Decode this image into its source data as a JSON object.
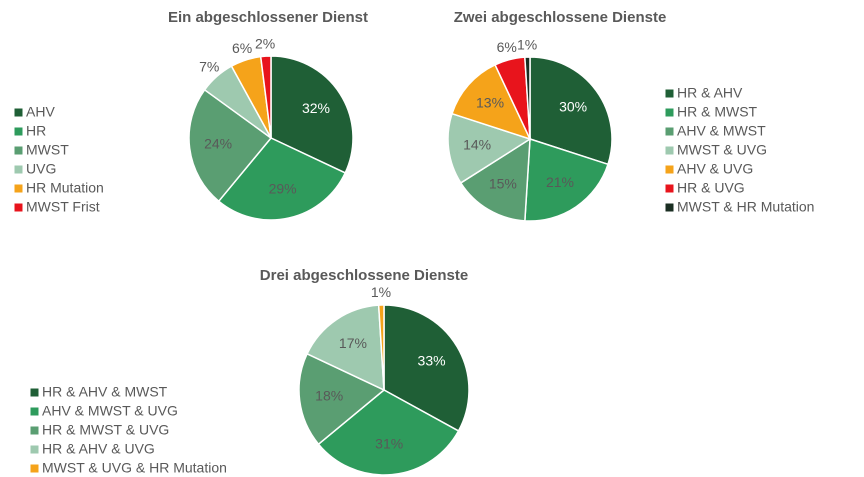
{
  "chart_data": [
    {
      "type": "pie",
      "title": "Ein abgeschlossener Dienst",
      "categories": [
        "AHV",
        "HR",
        "MWST",
        "UVG",
        "HR Mutation",
        "MWST Frist"
      ],
      "values": [
        32,
        29,
        24,
        7,
        6,
        2
      ],
      "value_labels": [
        "32%",
        "29%",
        "24%",
        "7%",
        "6%",
        "2%"
      ],
      "colors": [
        "#1f5f36",
        "#2e9b5c",
        "#5a9e72",
        "#9ec9af",
        "#f5a31a",
        "#e8141c"
      ]
    },
    {
      "type": "pie",
      "title": "Zwei abgeschlossene Dienste",
      "categories": [
        "HR & AHV",
        "HR & MWST",
        "AHV & MWST",
        "MWST & UVG",
        "AHV & UVG",
        "HR & UVG",
        "MWST & HR Mutation"
      ],
      "values": [
        30,
        21,
        15,
        14,
        13,
        6,
        1
      ],
      "value_labels": [
        "30%",
        "21%",
        "15%",
        "14%",
        "13%",
        "6%",
        "1%"
      ],
      "colors": [
        "#1f5f36",
        "#2e9b5c",
        "#5a9e72",
        "#9ec9af",
        "#f5a31a",
        "#e8141c",
        "#1a2e22"
      ]
    },
    {
      "type": "pie",
      "title": "Drei abgeschlossene Dienste",
      "categories": [
        "HR & AHV & MWST",
        "AHV & MWST & UVG",
        "HR & MWST & UVG",
        "HR & AHV & UVG",
        "MWST & UVG & HR Mutation"
      ],
      "values": [
        33,
        31,
        18,
        17,
        1
      ],
      "value_labels": [
        "33%",
        "31%",
        "18%",
        "17%",
        "1%"
      ],
      "colors": [
        "#1f5f36",
        "#2e9b5c",
        "#5a9e72",
        "#9ec9af",
        "#f5a31a"
      ]
    }
  ]
}
